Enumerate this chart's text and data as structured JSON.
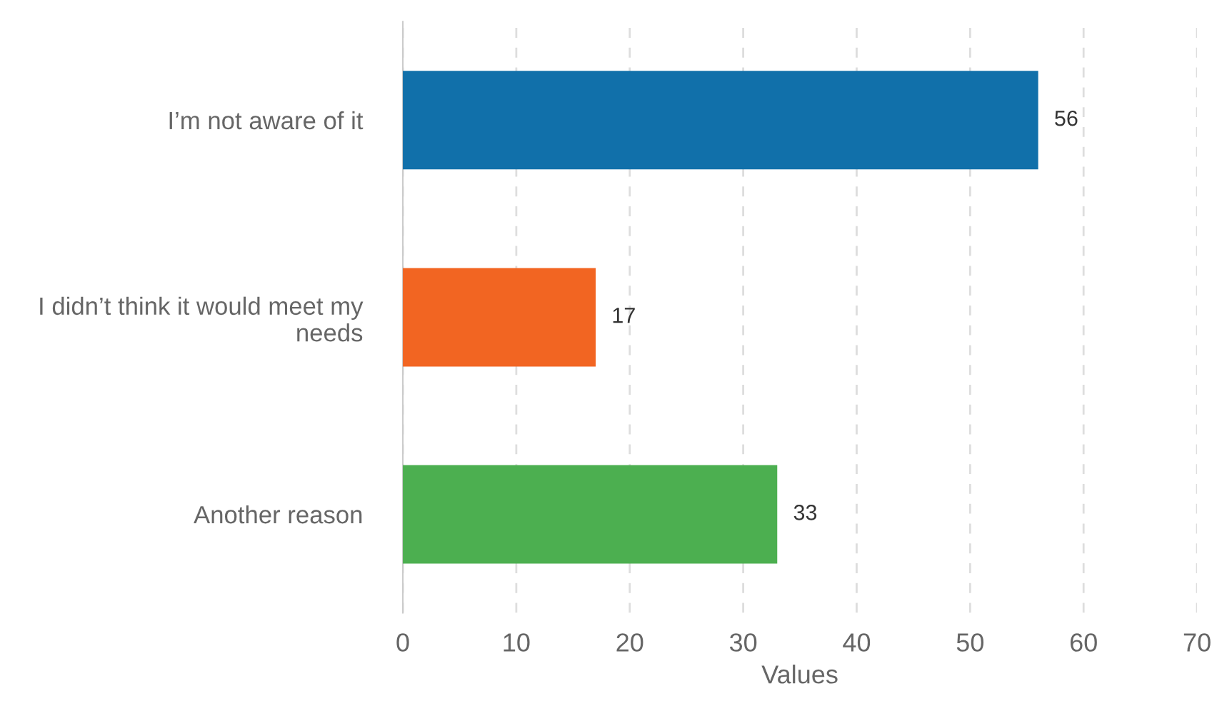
{
  "chart_data": {
    "type": "bar",
    "orientation": "horizontal",
    "xlabel": "Values",
    "categories": [
      "I’m not aware of it",
      "I didn’t think it would meet my needs",
      "Another reason"
    ],
    "values": [
      56,
      17,
      33
    ],
    "colors": [
      "#1170aa",
      "#f26522",
      "#4caf50"
    ],
    "xlim": [
      0,
      70
    ],
    "xticks": [
      0,
      10,
      20,
      30,
      40,
      50,
      60,
      70
    ],
    "grid": "x",
    "data_labels": true
  }
}
